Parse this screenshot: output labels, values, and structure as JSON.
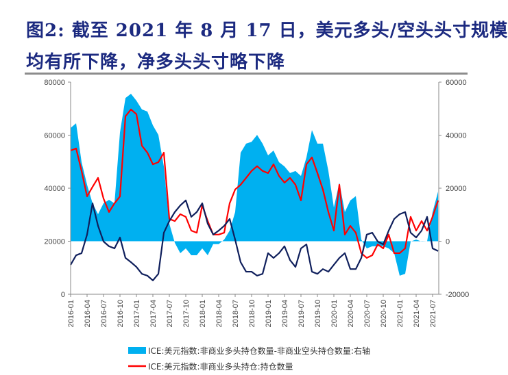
{
  "title": {
    "line1": "图2: 截至 2021 年 8 月 17 日，美元多头/空头头寸规模",
    "line2": "均有所下降，净多头头寸略下降"
  },
  "chart_data": {
    "type": "area+line",
    "left_axis": {
      "ylim": [
        0,
        80000
      ],
      "ticks": [
        "0",
        "20000",
        "40000",
        "60000",
        "80000"
      ]
    },
    "right_axis": {
      "ylim": [
        -20000,
        60000
      ],
      "ticks": [
        "-20000",
        "0",
        "20000",
        "40000",
        "60000"
      ]
    },
    "x_tick_labels": [
      "2016-01",
      "2016-04",
      "2016-07",
      "2016-10",
      "2017-01",
      "2017-04",
      "2017-07",
      "2017-10",
      "2018-01",
      "2018-04",
      "2018-07",
      "2018-10",
      "2019-01",
      "2019-04",
      "2019-07",
      "2019-10",
      "2020-01",
      "2020-04",
      "2020-07",
      "2020-10",
      "2021-01",
      "2021-04",
      "2021-07"
    ],
    "x": [
      "2016-01",
      "2016-02",
      "2016-03",
      "2016-04",
      "2016-05",
      "2016-06",
      "2016-07",
      "2016-08",
      "2016-09",
      "2016-10",
      "2016-11",
      "2016-12",
      "2017-01",
      "2017-02",
      "2017-03",
      "2017-04",
      "2017-05",
      "2017-06",
      "2017-07",
      "2017-08",
      "2017-09",
      "2017-10",
      "2017-11",
      "2017-12",
      "2018-01",
      "2018-02",
      "2018-03",
      "2018-04",
      "2018-05",
      "2018-06",
      "2018-07",
      "2018-08",
      "2018-09",
      "2018-10",
      "2018-11",
      "2018-12",
      "2019-01",
      "2019-02",
      "2019-03",
      "2019-04",
      "2019-05",
      "2019-06",
      "2019-07",
      "2019-08",
      "2019-09",
      "2019-10",
      "2019-11",
      "2019-12",
      "2020-01",
      "2020-02",
      "2020-03",
      "2020-04",
      "2020-05",
      "2020-06",
      "2020-07",
      "2020-08",
      "2020-09",
      "2020-10",
      "2020-11",
      "2020-12",
      "2021-01",
      "2021-02",
      "2021-03",
      "2021-04",
      "2021-05",
      "2021-06",
      "2021-07",
      "2021-08"
    ],
    "series": [
      {
        "name": "ICE:美元指数:非商业多头持仓数量-非商业空头持仓数量:右轴",
        "type": "area",
        "axis": "right",
        "color": "#00b0f0",
        "values": [
          42700,
          44500,
          29800,
          21300,
          14300,
          10200,
          14300,
          15600,
          14300,
          41000,
          54000,
          55600,
          53000,
          49700,
          48900,
          43700,
          40100,
          28200,
          6600,
          -600,
          -4500,
          -2700,
          -5300,
          -5300,
          -2700,
          -5300,
          -1100,
          -1100,
          600,
          4000,
          11000,
          33400,
          36800,
          37500,
          40100,
          36800,
          32400,
          34200,
          29800,
          28200,
          25700,
          26500,
          24600,
          31600,
          41900,
          36800,
          36800,
          26500,
          12700,
          22100,
          11000,
          15400,
          17000,
          600,
          -2700,
          -1900,
          -1900,
          -1900,
          -2700,
          -4500,
          -13000,
          -12300,
          -100,
          600,
          -100,
          0,
          11000,
          18700
        ]
      },
      {
        "name": "ICE:美元指数:非商业多头持仓:持仓数量",
        "type": "line",
        "axis": "left",
        "color": "#ff0000",
        "values": [
          54200,
          55000,
          46500,
          36900,
          40500,
          43900,
          36100,
          31000,
          34300,
          36900,
          67100,
          69700,
          67900,
          56000,
          53400,
          49000,
          49800,
          53400,
          28400,
          27600,
          30200,
          29200,
          24000,
          23200,
          33500,
          27600,
          22500,
          22500,
          23200,
          34300,
          39500,
          41300,
          43900,
          46500,
          48300,
          46500,
          45700,
          49000,
          44600,
          42100,
          43900,
          41300,
          35400,
          49000,
          51600,
          45700,
          39500,
          31000,
          24000,
          41300,
          22500,
          25800,
          23200,
          15500,
          13700,
          14700,
          18800,
          17300,
          22500,
          15500,
          15500,
          17300,
          29200,
          24000,
          27600,
          24000,
          29200,
          35400
        ]
      },
      {
        "type": "line",
        "axis": "left",
        "color": "#0f1f5c",
        "values": [
          11100,
          14700,
          15500,
          22500,
          34300,
          25800,
          19900,
          18100,
          17300,
          21400,
          13700,
          12100,
          10300,
          7700,
          7000,
          5200,
          7700,
          23200,
          27600,
          31000,
          33500,
          35400,
          29200,
          31000,
          34300,
          26600,
          22500,
          24000,
          25800,
          28400,
          20600,
          12100,
          8500,
          8500,
          7000,
          7700,
          15500,
          13700,
          15500,
          18100,
          12900,
          10300,
          17300,
          18800,
          8500,
          7700,
          9500,
          8500,
          11100,
          13700,
          15500,
          9500,
          9500,
          13700,
          22500,
          23200,
          19900,
          18800,
          24000,
          28400,
          30200,
          31000,
          23200,
          21400,
          24000,
          29200,
          17300,
          16300
        ]
      }
    ],
    "legend": [
      {
        "label": "ICE:美元指数:非商业多头持仓数量-非商业空头持仓数量:右轴",
        "color": "#00b0f0",
        "kind": "box"
      },
      {
        "label": "ICE:美元指数:非商业多头持仓:持仓数量",
        "color": "#ff0000",
        "kind": "line"
      }
    ],
    "legend_position": "bottom",
    "grid": false
  }
}
